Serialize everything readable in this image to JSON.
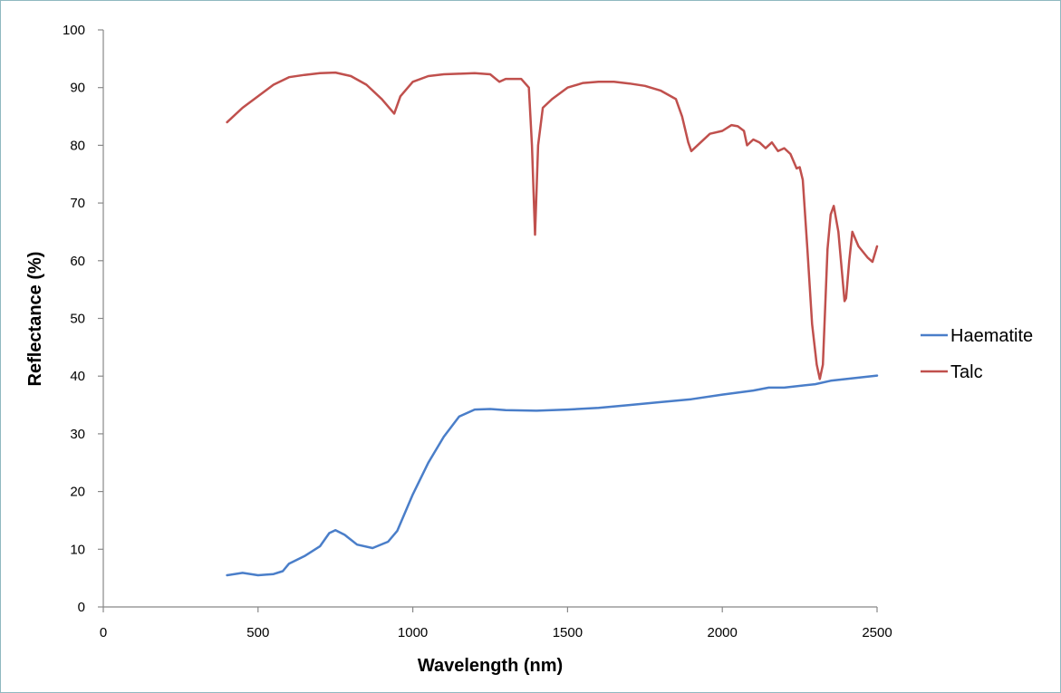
{
  "chart_data": {
    "type": "line",
    "title": "",
    "xlabel": "Wavelength (nm)",
    "ylabel": "Reflectance (%)",
    "xlim": [
      0,
      2500
    ],
    "ylim": [
      0,
      100
    ],
    "x_ticks": [
      0,
      500,
      1000,
      1500,
      2000,
      2500
    ],
    "y_ticks": [
      0,
      10,
      20,
      30,
      40,
      50,
      60,
      70,
      80,
      90,
      100
    ],
    "grid": false,
    "legend_position": "right",
    "series": [
      {
        "name": "Haematite",
        "color": "#4a7ec9",
        "points": [
          [
            400,
            5.5
          ],
          [
            450,
            5.9
          ],
          [
            500,
            5.5
          ],
          [
            550,
            5.7
          ],
          [
            580,
            6.2
          ],
          [
            600,
            7.5
          ],
          [
            650,
            8.8
          ],
          [
            700,
            10.5
          ],
          [
            730,
            12.8
          ],
          [
            750,
            13.3
          ],
          [
            780,
            12.5
          ],
          [
            820,
            10.8
          ],
          [
            870,
            10.2
          ],
          [
            920,
            11.3
          ],
          [
            950,
            13.2
          ],
          [
            1000,
            19.5
          ],
          [
            1050,
            25.0
          ],
          [
            1100,
            29.5
          ],
          [
            1150,
            33.0
          ],
          [
            1200,
            34.2
          ],
          [
            1250,
            34.3
          ],
          [
            1300,
            34.1
          ],
          [
            1400,
            34.0
          ],
          [
            1500,
            34.2
          ],
          [
            1600,
            34.5
          ],
          [
            1700,
            35.0
          ],
          [
            1800,
            35.5
          ],
          [
            1900,
            36.0
          ],
          [
            2000,
            36.8
          ],
          [
            2100,
            37.5
          ],
          [
            2150,
            38.0
          ],
          [
            2200,
            38.0
          ],
          [
            2300,
            38.6
          ],
          [
            2350,
            39.2
          ],
          [
            2400,
            39.5
          ],
          [
            2500,
            40.1
          ]
        ]
      },
      {
        "name": "Talc",
        "color": "#c0504d",
        "points": [
          [
            400,
            84.0
          ],
          [
            450,
            86.5
          ],
          [
            500,
            88.5
          ],
          [
            550,
            90.5
          ],
          [
            600,
            91.8
          ],
          [
            650,
            92.2
          ],
          [
            700,
            92.5
          ],
          [
            750,
            92.6
          ],
          [
            800,
            92.0
          ],
          [
            850,
            90.5
          ],
          [
            900,
            88.0
          ],
          [
            940,
            85.5
          ],
          [
            960,
            88.5
          ],
          [
            1000,
            91.0
          ],
          [
            1050,
            92.0
          ],
          [
            1100,
            92.3
          ],
          [
            1150,
            92.4
          ],
          [
            1200,
            92.5
          ],
          [
            1250,
            92.3
          ],
          [
            1280,
            91.0
          ],
          [
            1300,
            91.5
          ],
          [
            1350,
            91.5
          ],
          [
            1375,
            90.0
          ],
          [
            1385,
            80.0
          ],
          [
            1395,
            64.5
          ],
          [
            1405,
            80.0
          ],
          [
            1420,
            86.5
          ],
          [
            1450,
            88.0
          ],
          [
            1500,
            90.0
          ],
          [
            1550,
            90.8
          ],
          [
            1600,
            91.0
          ],
          [
            1650,
            91.0
          ],
          [
            1700,
            90.7
          ],
          [
            1750,
            90.3
          ],
          [
            1800,
            89.5
          ],
          [
            1850,
            88.0
          ],
          [
            1870,
            85.0
          ],
          [
            1890,
            80.5
          ],
          [
            1900,
            79.0
          ],
          [
            1930,
            80.5
          ],
          [
            1960,
            82.0
          ],
          [
            2000,
            82.5
          ],
          [
            2030,
            83.5
          ],
          [
            2050,
            83.3
          ],
          [
            2070,
            82.5
          ],
          [
            2080,
            80.0
          ],
          [
            2100,
            81.0
          ],
          [
            2120,
            80.5
          ],
          [
            2140,
            79.5
          ],
          [
            2160,
            80.5
          ],
          [
            2180,
            79.0
          ],
          [
            2200,
            79.5
          ],
          [
            2220,
            78.5
          ],
          [
            2240,
            76.0
          ],
          [
            2250,
            76.2
          ],
          [
            2260,
            74.0
          ],
          [
            2275,
            62.0
          ],
          [
            2290,
            49.0
          ],
          [
            2305,
            42.0
          ],
          [
            2315,
            39.5
          ],
          [
            2325,
            42.0
          ],
          [
            2340,
            62.0
          ],
          [
            2350,
            68.0
          ],
          [
            2360,
            69.5
          ],
          [
            2375,
            65.0
          ],
          [
            2390,
            56.0
          ],
          [
            2395,
            53.0
          ],
          [
            2400,
            53.5
          ],
          [
            2410,
            60.0
          ],
          [
            2420,
            65.0
          ],
          [
            2440,
            62.5
          ],
          [
            2470,
            60.5
          ],
          [
            2485,
            59.8
          ],
          [
            2500,
            62.5
          ]
        ]
      }
    ]
  }
}
